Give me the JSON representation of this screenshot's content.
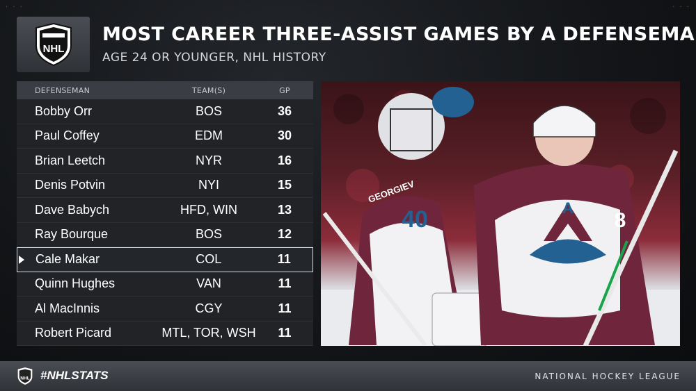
{
  "header": {
    "logo": "NHL",
    "title": "MOST CAREER THREE-ASSIST GAMES BY A DEFENSEMAN",
    "subtitle": "AGE 24 OR YOUNGER, NHL HISTORY"
  },
  "table": {
    "columns": [
      "DEFENSEMAN",
      "TEAM(S)",
      "GP"
    ],
    "rows": [
      {
        "name": "Bobby Orr",
        "team": "BOS",
        "gp": "36"
      },
      {
        "name": "Paul Coffey",
        "team": "EDM",
        "gp": "30"
      },
      {
        "name": "Brian Leetch",
        "team": "NYR",
        "gp": "16"
      },
      {
        "name": "Denis Potvin",
        "team": "NYI",
        "gp": "15"
      },
      {
        "name": "Dave Babych",
        "team": "HFD, WIN",
        "gp": "13"
      },
      {
        "name": "Ray Bourque",
        "team": "BOS",
        "gp": "12"
      },
      {
        "name": "Cale Makar",
        "team": "COL",
        "gp": "11"
      },
      {
        "name": "Quinn Hughes",
        "team": "VAN",
        "gp": "11"
      },
      {
        "name": "Al MacInnis",
        "team": "CGY",
        "gp": "11"
      },
      {
        "name": "Robert Picard",
        "team": "MTL, TOR, WSH",
        "gp": "11"
      }
    ],
    "highlight_index": 6
  },
  "photo": {
    "jersey_numbers": [
      "40",
      "8"
    ],
    "captain_mark": "A",
    "name_bar": "GEORGIEV"
  },
  "footer": {
    "tag": "#NHLSTATS",
    "league": "NATIONAL HOCKEY LEAGUE"
  },
  "colors": {
    "burgundy": "#6f263d",
    "steel_blue": "#236192",
    "panel": "#3a3e44"
  }
}
